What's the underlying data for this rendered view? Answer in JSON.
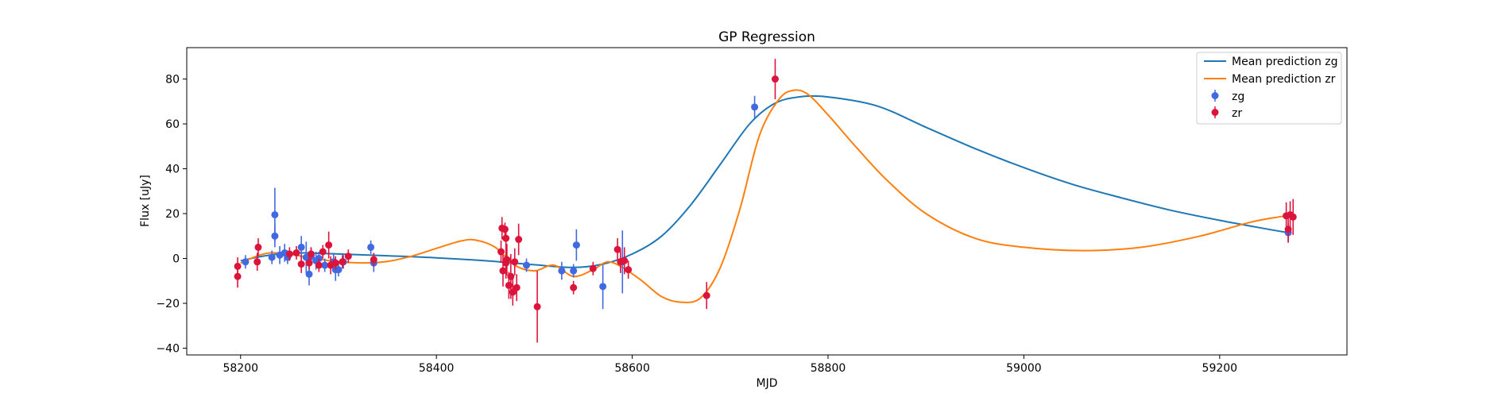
{
  "chart_data": {
    "type": "scatter",
    "title": "GP Regression",
    "xlabel": "MJD",
    "ylabel": "Flux [uJy]",
    "xlim": [
      58145,
      59330
    ],
    "ylim": [
      -43,
      94
    ],
    "xticks": [
      58200,
      58400,
      58600,
      58800,
      59000,
      59200
    ],
    "yticks": [
      -40,
      -20,
      0,
      20,
      40,
      60,
      80
    ],
    "grid": false,
    "legend": "top-right",
    "legend_entries": [
      "Mean prediction zg",
      "Mean prediction zr",
      "zg",
      "zr"
    ],
    "colors": {
      "zg": "#4169e1",
      "zr": "#dc143c",
      "mean_zg": "#1f77b4",
      "mean_zr": "#ff7f0e"
    },
    "series": [
      {
        "name": "Mean prediction zg",
        "kind": "line",
        "points": [
          [
            58200,
            -1
          ],
          [
            58230,
            1.5
          ],
          [
            58260,
            2.5
          ],
          [
            58300,
            2
          ],
          [
            58350,
            1.2
          ],
          [
            58400,
            0.3
          ],
          [
            58450,
            -1
          ],
          [
            58500,
            -2.8
          ],
          [
            58540,
            -4
          ],
          [
            58570,
            -2.5
          ],
          [
            58600,
            2
          ],
          [
            58630,
            10
          ],
          [
            58660,
            24
          ],
          [
            58690,
            42
          ],
          [
            58720,
            60
          ],
          [
            58745,
            69
          ],
          [
            58770,
            72
          ],
          [
            58800,
            72
          ],
          [
            58850,
            68
          ],
          [
            58900,
            58.5
          ],
          [
            58950,
            49
          ],
          [
            59000,
            40.5
          ],
          [
            59050,
            33
          ],
          [
            59100,
            27
          ],
          [
            59150,
            21.5
          ],
          [
            59200,
            17
          ],
          [
            59250,
            13
          ],
          [
            59270,
            11.5
          ]
        ]
      },
      {
        "name": "Mean prediction zr",
        "kind": "line",
        "points": [
          [
            58200,
            -2
          ],
          [
            58230,
            2.5
          ],
          [
            58270,
            0.5
          ],
          [
            58300,
            -1.5
          ],
          [
            58340,
            -1.8
          ],
          [
            58370,
            0.5
          ],
          [
            58400,
            4.5
          ],
          [
            58425,
            7.8
          ],
          [
            58440,
            8.2
          ],
          [
            58460,
            5
          ],
          [
            58480,
            -3
          ],
          [
            58500,
            -5.5
          ],
          [
            58520,
            -3
          ],
          [
            58540,
            -8
          ],
          [
            58560,
            -5
          ],
          [
            58575,
            -1.5
          ],
          [
            58590,
            -4
          ],
          [
            58610,
            -10
          ],
          [
            58630,
            -17
          ],
          [
            58650,
            -19.5
          ],
          [
            58670,
            -17.5
          ],
          [
            58690,
            -4
          ],
          [
            58710,
            22
          ],
          [
            58730,
            55
          ],
          [
            58750,
            71
          ],
          [
            58765,
            75
          ],
          [
            58780,
            73
          ],
          [
            58800,
            64
          ],
          [
            58830,
            49
          ],
          [
            58860,
            35
          ],
          [
            58900,
            20
          ],
          [
            58950,
            9
          ],
          [
            59000,
            5
          ],
          [
            59060,
            3.5
          ],
          [
            59120,
            5
          ],
          [
            59180,
            10
          ],
          [
            59230,
            16
          ],
          [
            59260,
            18.5
          ],
          [
            59270,
            19
          ]
        ]
      },
      {
        "name": "zg",
        "kind": "errorbar",
        "points": [
          [
            58205,
            -1.5,
            3
          ],
          [
            58232,
            0.5,
            3
          ],
          [
            58235,
            19.5,
            12
          ],
          [
            58235,
            10,
            5
          ],
          [
            58240,
            1.5,
            4
          ],
          [
            58245,
            2.5,
            4
          ],
          [
            58248,
            0.5,
            3
          ],
          [
            58262,
            5,
            5
          ],
          [
            58267,
            0.5,
            7
          ],
          [
            58270,
            -7,
            5
          ],
          [
            58272,
            1,
            4
          ],
          [
            58277,
            -1,
            4
          ],
          [
            58280,
            0,
            3
          ],
          [
            58286,
            -3,
            3
          ],
          [
            58295,
            -1.5,
            4
          ],
          [
            58297,
            -5,
            5
          ],
          [
            58300,
            -5,
            3
          ],
          [
            58305,
            -1.5,
            3
          ],
          [
            58333,
            5,
            3
          ],
          [
            58336,
            -2,
            4
          ],
          [
            58492,
            -3,
            3
          ],
          [
            58528,
            -5.5,
            4
          ],
          [
            58540,
            -5.5,
            3
          ],
          [
            58543,
            6,
            7
          ],
          [
            58570,
            -12.5,
            10
          ],
          [
            58590,
            -1.5,
            14
          ],
          [
            58725,
            67.5,
            5
          ],
          [
            59270,
            11.5,
            4
          ]
        ]
      },
      {
        "name": "zr",
        "kind": "errorbar",
        "points": [
          [
            58197,
            -8,
            5
          ],
          [
            58197,
            -3.5,
            4
          ],
          [
            58217,
            -1.5,
            4
          ],
          [
            58218,
            5,
            4
          ],
          [
            58250,
            2,
            3
          ],
          [
            58257,
            2.5,
            3
          ],
          [
            58262,
            -2.5,
            4
          ],
          [
            58270,
            -2,
            3
          ],
          [
            58272,
            2,
            3
          ],
          [
            58280,
            -3,
            3
          ],
          [
            58284,
            3,
            3
          ],
          [
            58290,
            6,
            6
          ],
          [
            58292,
            -3,
            4
          ],
          [
            58297,
            -2,
            3
          ],
          [
            58304,
            -1.5,
            3
          ],
          [
            58310,
            1,
            3
          ],
          [
            58336,
            -0.5,
            3
          ],
          [
            58466,
            3,
            5
          ],
          [
            58467,
            13.5,
            5
          ],
          [
            58470,
            13,
            3
          ],
          [
            58471,
            9,
            4
          ],
          [
            58468,
            -5.5,
            7
          ],
          [
            58471,
            -2,
            7
          ],
          [
            58472,
            -0.5,
            7
          ],
          [
            58474,
            -12,
            6
          ],
          [
            58476,
            -8,
            10
          ],
          [
            58478,
            -15,
            6
          ],
          [
            58480,
            -1.5,
            6
          ],
          [
            58482,
            -13,
            6
          ],
          [
            58484,
            8.5,
            7
          ],
          [
            58503,
            -21.5,
            16
          ],
          [
            58540,
            -13,
            3
          ],
          [
            58560,
            -4.5,
            3
          ],
          [
            58585,
            4,
            5
          ],
          [
            58588,
            -1.5,
            5
          ],
          [
            58592,
            -1,
            6
          ],
          [
            58596,
            -5,
            4
          ],
          [
            58676,
            -16.5,
            6
          ],
          [
            58746,
            80,
            9
          ],
          [
            59268,
            19,
            6
          ],
          [
            59270,
            13,
            6
          ],
          [
            59272,
            19.5,
            6
          ],
          [
            59275,
            18.5,
            8
          ]
        ]
      }
    ]
  }
}
